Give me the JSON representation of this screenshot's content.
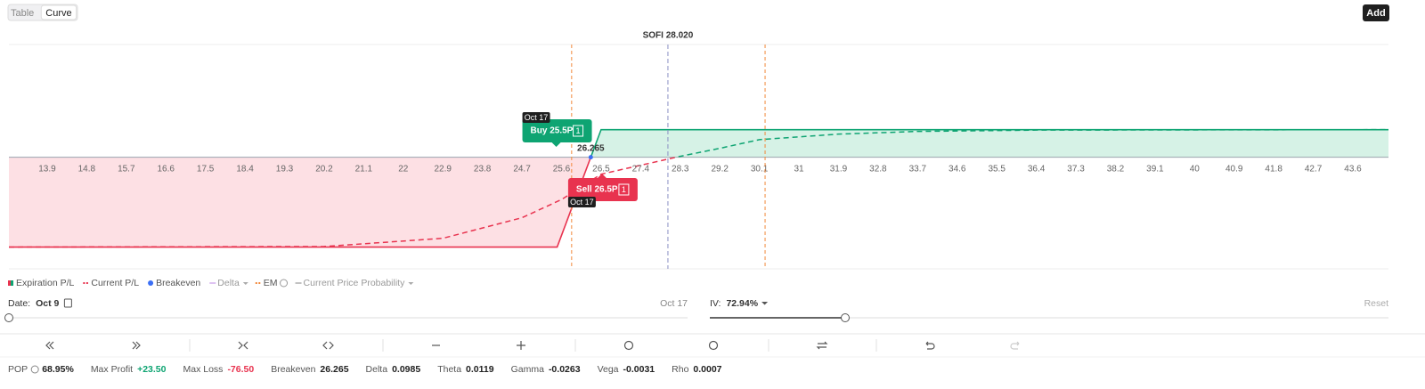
{
  "tabs": {
    "items": [
      "Table",
      "Curve"
    ],
    "active": 1
  },
  "add_button": "Add",
  "chart": {
    "price_label": "SOFI 28.020",
    "price": 28.02,
    "xlim": [
      13.03,
      44.41
    ],
    "ylim": [
      -95,
      96
    ],
    "xticks": [
      13.9,
      14.8,
      15.7,
      16.6,
      17.5,
      18.4,
      19.3,
      20.2,
      21.1,
      22.0,
      22.9,
      23.8,
      24.7,
      25.6,
      26.5,
      27.4,
      28.3,
      29.2,
      30.1,
      31.0,
      31.9,
      32.8,
      33.7,
      34.6,
      35.5,
      36.4,
      37.3,
      38.2,
      39.1,
      40.0,
      40.9,
      41.8,
      42.7,
      43.6
    ],
    "em": [
      25.83,
      30.23
    ],
    "breakeven": 26.265,
    "expiration": {
      "x": [
        13.03,
        25.5,
        26.5,
        44.41
      ],
      "values": [
        -76.5,
        -76.5,
        23.5,
        23.5
      ]
    },
    "current": {
      "x": [
        13.03,
        20.2,
        22.9,
        24.7,
        25.6,
        26.5,
        27.4,
        28.3,
        29.2,
        30.1,
        31.9,
        33.7,
        36.4,
        44.41
      ],
      "values": [
        -76.5,
        -76,
        -69,
        -51.5,
        -36,
        -14.4,
        -6.8,
        0.8,
        7.6,
        15,
        19.7,
        22,
        23.1,
        23.5
      ]
    },
    "legs": [
      {
        "label": "Buy 25.5P",
        "qty": "1",
        "date": "Oct 17",
        "color": "#0ea472"
      },
      {
        "label": "Sell 26.5P",
        "qty": "1",
        "date": "Oct 17",
        "color": "#e8334f"
      }
    ]
  },
  "legend": [
    {
      "label": "Expiration P/L",
      "marker": "square",
      "color": "#e8334f",
      "active": true
    },
    {
      "label": "Current P/L",
      "marker": "dashes",
      "color": "#e8334f",
      "active": true
    },
    {
      "label": "Breakeven",
      "marker": "dot",
      "color": "#3b6ff5",
      "active": true
    },
    {
      "label": "Delta",
      "marker": "line",
      "color": "#c79be8",
      "active": false,
      "dropdown": true
    },
    {
      "label": "EM",
      "marker": "dashes",
      "color": "#f2883a",
      "active": true,
      "info": true
    },
    {
      "label": "Current Price Probability",
      "marker": "line",
      "color": "#999999",
      "active": false,
      "dropdown": true
    }
  ],
  "date": {
    "label": "Date:",
    "value": "Oct 9",
    "end": "Oct 17"
  },
  "iv": {
    "label": "IV:",
    "value": "72.94%",
    "reset": "Reset"
  },
  "stats": [
    {
      "label": "POP",
      "value": "68.95%",
      "info": true
    },
    {
      "label": "Max Profit",
      "value": "+23.50",
      "color": "#0ea472"
    },
    {
      "label": "Max Loss",
      "value": "-76.50",
      "color": "#e8334f"
    },
    {
      "label": "Breakeven",
      "value": "26.265"
    },
    {
      "label": "Delta",
      "value": "0.0985"
    },
    {
      "label": "Theta",
      "value": "0.0119"
    },
    {
      "label": "Gamma",
      "value": "-0.0263"
    },
    {
      "label": "Vega",
      "value": "-0.0031"
    },
    {
      "label": "Rho",
      "value": "0.0007"
    }
  ]
}
